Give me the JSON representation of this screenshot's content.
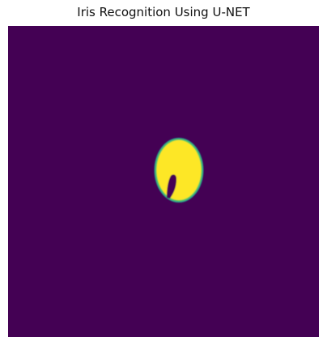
{
  "figure": {
    "title": "Iris Recognition Using U-NET"
  },
  "image": {
    "content": "binary segmentation mask",
    "colormap": "viridis",
    "axes_visible": false,
    "colors": {
      "background": "#440154",
      "foreground": "#fde725",
      "edge_mid": "#2a9d8c",
      "edge_inner": "#5ec962"
    }
  }
}
